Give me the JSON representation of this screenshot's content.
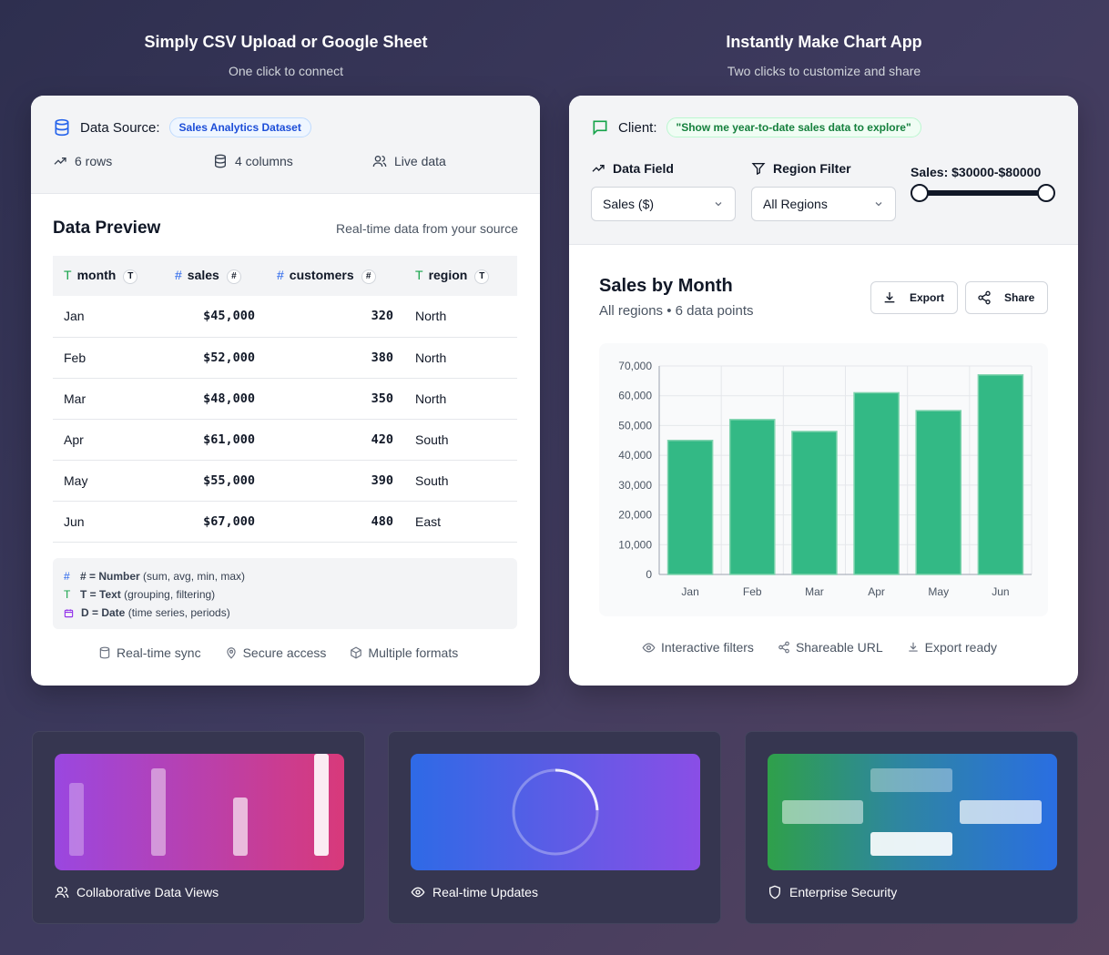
{
  "left_hero": {
    "title": "Simply CSV Upload or Google Sheet",
    "subtitle": "One click to connect"
  },
  "right_hero": {
    "title": "Instantly Make Chart App",
    "subtitle": "Two clicks to customize and share"
  },
  "data_source": {
    "label": "Data Source:",
    "dataset": "Sales Analytics Dataset",
    "rows": "6 rows",
    "columns": "4 columns",
    "live": "Live data"
  },
  "preview": {
    "title": "Data Preview",
    "subtitle": "Real-time data from your source",
    "headers": [
      {
        "name": "month",
        "badge": "T"
      },
      {
        "name": "sales",
        "badge": "#"
      },
      {
        "name": "customers",
        "badge": "#"
      },
      {
        "name": "region",
        "badge": "T"
      }
    ],
    "rows": [
      [
        "Jan",
        "$45,000",
        "320",
        "North"
      ],
      [
        "Feb",
        "$52,000",
        "380",
        "North"
      ],
      [
        "Mar",
        "$48,000",
        "350",
        "North"
      ],
      [
        "Apr",
        "$61,000",
        "420",
        "South"
      ],
      [
        "May",
        "$55,000",
        "390",
        "South"
      ],
      [
        "Jun",
        "$67,000",
        "480",
        "East"
      ]
    ],
    "legend": [
      {
        "key": "# = Number",
        "desc": " (sum, avg, min, max)"
      },
      {
        "key": "T = Text",
        "desc": " (grouping, filtering)"
      },
      {
        "key": "D = Date",
        "desc": " (time series, periods)"
      }
    ],
    "footer": [
      "Real-time sync",
      "Secure access",
      "Multiple formats"
    ]
  },
  "client": {
    "label": "Client:",
    "quote": "\"Show me year-to-date sales data to explore\"",
    "data_field_label": "Data Field",
    "data_field_value": "Sales ($)",
    "region_label": "Region Filter",
    "region_value": "All Regions",
    "slider_label": "Sales: $30000-$80000",
    "slider_min": 30000,
    "slider_max": 80000
  },
  "chart_panel": {
    "title": "Sales by Month",
    "subtitle": "All regions • 6 data points",
    "export": "Export",
    "share": "Share",
    "footer": [
      "Interactive filters",
      "Shareable URL",
      "Export ready"
    ]
  },
  "chart_data": {
    "type": "bar",
    "title": "Sales by Month",
    "categories": [
      "Jan",
      "Feb",
      "Mar",
      "Apr",
      "May",
      "Jun"
    ],
    "values": [
      45000,
      52000,
      48000,
      61000,
      55000,
      67000
    ],
    "ylim": [
      0,
      70000
    ],
    "yticks": [
      0,
      10000,
      20000,
      30000,
      40000,
      50000,
      60000,
      70000
    ],
    "ytick_labels": [
      "0",
      "10,000",
      "20,000",
      "30,000",
      "40,000",
      "50,000",
      "60,000",
      "70,000"
    ],
    "color": "#33b985",
    "grid": true
  },
  "features": [
    {
      "label": "Collaborative Data Views",
      "icon": "users-icon"
    },
    {
      "label": "Real-time Updates",
      "icon": "eye-icon"
    },
    {
      "label": "Enterprise Security",
      "icon": "shield-icon"
    }
  ]
}
